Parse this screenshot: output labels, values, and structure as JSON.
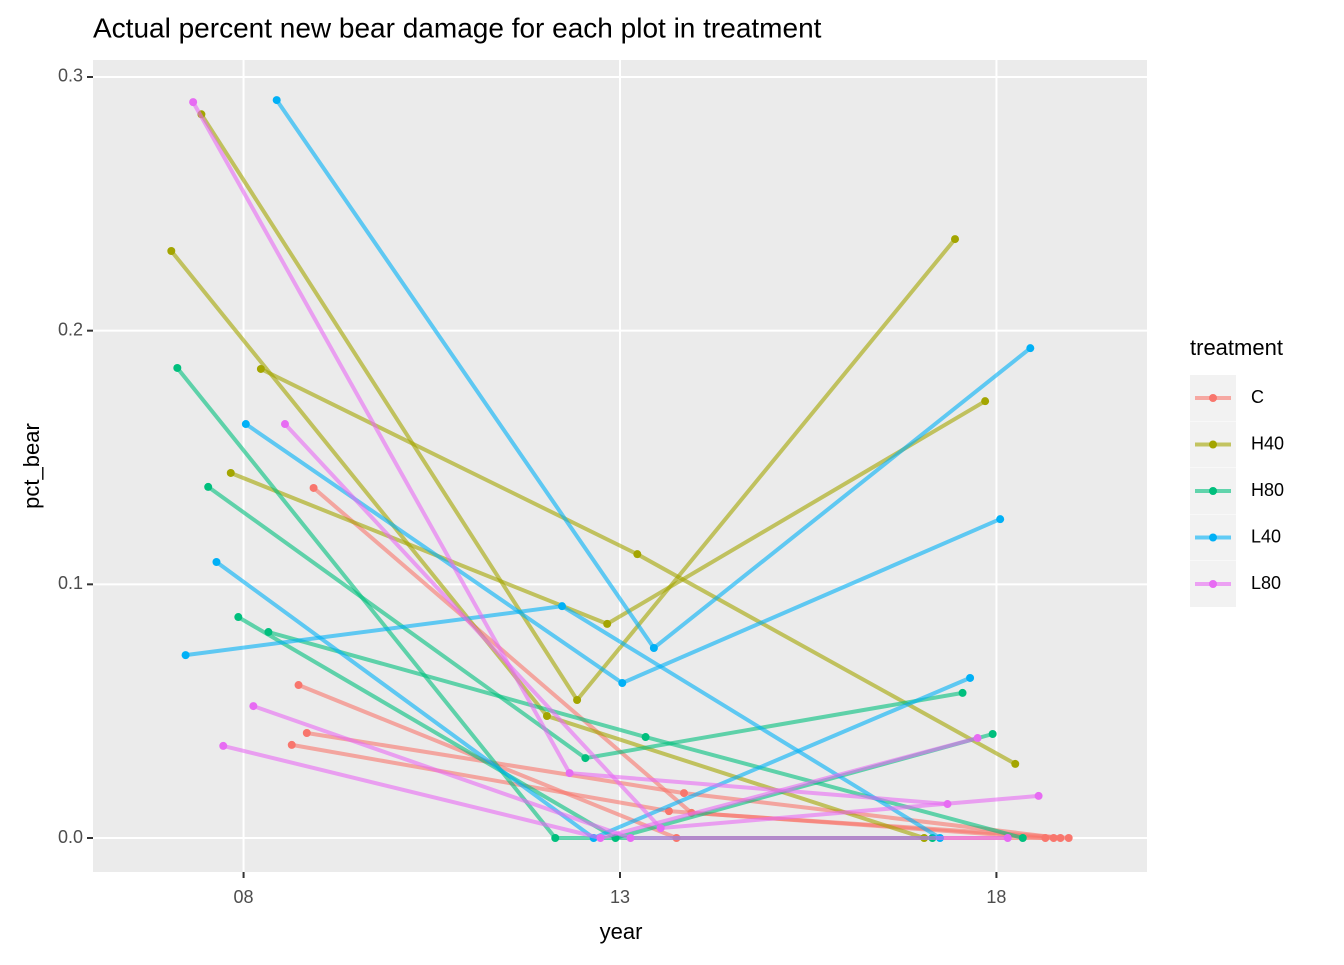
{
  "chart_data": {
    "type": "line",
    "title": "Actual percent new bear damage for each plot in treatment",
    "x_label": "year",
    "y_label": "pct_bear",
    "legend_title": "treatment",
    "xlim": [
      6,
      20
    ],
    "ylim": [
      -0.0134,
      0.3067
    ],
    "xticks": [
      {
        "value": 8,
        "label": "08"
      },
      {
        "value": 13,
        "label": "13"
      },
      {
        "value": 18,
        "label": "18"
      }
    ],
    "yticks": [
      {
        "value": 0,
        "label": "0.0"
      },
      0.1,
      0.2,
      0.3
    ],
    "grid": true,
    "legend": "right",
    "series": [
      {
        "name": "C",
        "color": "#F8766D",
        "lines": [
          {
            "x": [
              8.73,
              13.75,
              18.76
            ],
            "values": [
              0.0603,
              0,
              0
            ]
          },
          {
            "x": [
              8.64,
              13.65,
              18.65
            ],
            "values": [
              0.0367,
              0.0106,
              0
            ]
          },
          {
            "x": [
              8.93,
              13.95,
              18.96
            ],
            "values": [
              0.138,
              0.0099,
              0
            ]
          },
          {
            "x": [
              8.84,
              13.85,
              18.85
            ],
            "values": [
              0.0414,
              0.0177,
              0
            ]
          }
        ]
      },
      {
        "name": "H40",
        "color": "#A3A500",
        "lines": [
          {
            "x": [
              7.04,
              12.03,
              17.04
            ],
            "values": [
              0.2314,
              0.0481,
              0
            ]
          },
          {
            "x": [
              7.44,
              12.43,
              17.45
            ],
            "values": [
              0.2853,
              0.0544,
              0.2361
            ]
          },
          {
            "x": [
              8.23,
              13.23,
              18.25
            ],
            "values": [
              0.1849,
              0.1119,
              0.0292
            ]
          },
          {
            "x": [
              7.83,
              12.83,
              17.85
            ],
            "values": [
              0.1439,
              0.0844,
              0.1722
            ]
          }
        ]
      },
      {
        "name": "H80",
        "color": "#00BF7D",
        "lines": [
          {
            "x": [
              7.12,
              12.14,
              17.15
            ],
            "values": [
              0.1853,
              0,
              0
            ]
          },
          {
            "x": [
              7.53,
              12.54,
              17.55
            ],
            "values": [
              0.1384,
              0.0315,
              0.0572
            ]
          },
          {
            "x": [
              7.93,
              12.94,
              17.95
            ],
            "values": [
              0.0871,
              0,
              0.041
            ]
          },
          {
            "x": [
              8.33,
              13.34,
              18.35
            ],
            "values": [
              0.0812,
              0.0398,
              0
            ]
          }
        ]
      },
      {
        "name": "L40",
        "color": "#00B0F6",
        "lines": [
          {
            "x": [
              7.23,
              12.23,
              17.25
            ],
            "values": [
              0.0721,
              0.0914,
              0
            ]
          },
          {
            "x": [
              7.64,
              12.65,
              17.65
            ],
            "values": [
              0.1088,
              0,
              0.0631
            ]
          },
          {
            "x": [
              8.03,
              13.03,
              18.05
            ],
            "values": [
              0.1632,
              0.0611,
              0.1257
            ]
          },
          {
            "x": [
              8.44,
              13.45,
              18.45
            ],
            "values": [
              0.2909,
              0.0749,
              0.1931
            ]
          }
        ]
      },
      {
        "name": "L80",
        "color": "#E76BF3",
        "lines": [
          {
            "x": [
              7.33,
              12.33,
              17.35
            ],
            "values": [
              0.2901,
              0.0256,
              0.0134
            ]
          },
          {
            "x": [
              7.73,
              12.74,
              17.75
            ],
            "values": [
              0.0363,
              0,
              0.0394
            ]
          },
          {
            "x": [
              8.13,
              13.14,
              18.15
            ],
            "values": [
              0.052,
              0,
              0
            ]
          },
          {
            "x": [
              8.55,
              13.54,
              18.56
            ],
            "values": [
              0.1632,
              0.0039,
              0.0166
            ]
          }
        ]
      }
    ]
  }
}
